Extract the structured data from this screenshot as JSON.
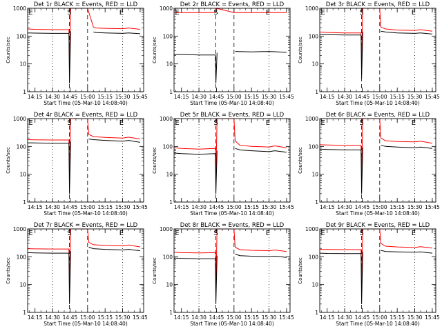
{
  "window": {
    "background": "#ffffff"
  },
  "colors": {
    "events": "#000000",
    "lld": "#ff0000",
    "axes": "#000000"
  },
  "chart_data": [
    {
      "type": "line",
      "title": "Det 1r BLACK = Events, RED = LLD",
      "xlabel": "Start Time (05-Mar-10 14:08:40)",
      "ylabel": "Counts/sec",
      "y_scale": "log",
      "ylim": [
        1,
        1000
      ],
      "yticks": [
        "1",
        "10",
        "100",
        "1000"
      ],
      "xticks": [
        "14:15",
        "14:30",
        "14:45",
        "15:00",
        "15:15",
        "15:30",
        "15:45"
      ],
      "markers": [
        "E",
        "S",
        "E"
      ],
      "series": [
        {
          "color": "#000000",
          "x": [
            "14:08:40",
            "14:15",
            "14:30",
            "14:44",
            "14:44:30",
            "14:45:30",
            "14:45:30",
            "15:00",
            "15:05",
            "15:07",
            "15:15",
            "15:30",
            "15:35",
            "15:45"
          ],
          "y": [
            130,
            128,
            125,
            125,
            2,
            150,
            null,
            null,
            140,
            135,
            130,
            125,
            130,
            122
          ]
        },
        {
          "color": "#ff0000",
          "x": [
            "14:08:40",
            "14:15",
            "14:30",
            "14:44",
            "14:44:30",
            "14:45:30",
            "14:48",
            "15:00",
            "15:05",
            "15:07",
            "15:15",
            "15:30",
            "15:35",
            "15:45"
          ],
          "y": [
            180,
            175,
            170,
            170,
            8,
            1000,
            1000,
            1000,
            210,
            195,
            190,
            185,
            195,
            175
          ]
        }
      ]
    },
    {
      "type": "line",
      "title": "Det 2r BLACK = Events, RED = LLD",
      "xlabel": "Start Time (05-Mar-10 14:08:40)",
      "ylabel": "Counts/sec",
      "y_scale": "log",
      "ylim": [
        1,
        1000
      ],
      "yticks": [
        "1",
        "10",
        "100",
        "1000"
      ],
      "xticks": [
        "14:15",
        "14:30",
        "14:45",
        "15:00",
        "15:15",
        "15:30",
        "15:45"
      ],
      "markers": [
        "E",
        "S",
        "E"
      ],
      "series": [
        {
          "color": "#000000",
          "x": [
            "14:08:40",
            "14:15",
            "14:30",
            "14:44",
            "14:44:30",
            "14:45:30",
            "14:45:30",
            "15:00",
            "15:01",
            "15:15",
            "15:30",
            "15:45"
          ],
          "y": [
            22,
            22,
            21,
            21,
            2,
            25,
            null,
            null,
            28,
            27,
            28,
            26
          ]
        },
        {
          "color": "#ff0000",
          "x": [
            "14:08:40",
            "14:15",
            "14:30",
            "14:44",
            "14:45",
            "15:00",
            "15:15",
            "15:30",
            "15:45"
          ],
          "y": [
            700,
            700,
            700,
            700,
            1000,
            700,
            700,
            700,
            700
          ]
        }
      ]
    },
    {
      "type": "line",
      "title": "Det 3r BLACK = Events, RED = LLD",
      "xlabel": "Start Time (05-Mar-10 14:08:40)",
      "ylabel": "Counts/sec",
      "y_scale": "log",
      "ylim": [
        1,
        1000
      ],
      "yticks": [
        "1",
        "10",
        "100",
        "1000"
      ],
      "xticks": [
        "14:15",
        "14:30",
        "14:45",
        "15:00",
        "15:15",
        "15:30",
        "15:45"
      ],
      "markers": [
        "E",
        "S",
        "E"
      ],
      "series": [
        {
          "color": "#000000",
          "x": [
            "14:08:40",
            "14:15",
            "14:30",
            "14:44",
            "14:44:30",
            "14:45:30",
            "14:45:30",
            "15:00",
            "15:01",
            "15:05",
            "15:15",
            "15:30",
            "15:35",
            "15:45"
          ],
          "y": [
            115,
            112,
            110,
            110,
            3,
            140,
            null,
            null,
            150,
            140,
            130,
            125,
            130,
            118
          ]
        },
        {
          "color": "#ff0000",
          "x": [
            "14:08:40",
            "14:15",
            "14:30",
            "14:44",
            "14:44:30",
            "14:45:30",
            "14:48",
            "15:00",
            "15:01",
            "15:05",
            "15:15",
            "15:30",
            "15:35",
            "15:45"
          ],
          "y": [
            140,
            135,
            130,
            130,
            10,
            1000,
            1000,
            1000,
            210,
            180,
            165,
            160,
            170,
            150
          ]
        }
      ]
    },
    {
      "type": "line",
      "title": "Det 4r BLACK = Events, RED = LLD",
      "xlabel": "Start Time (05-Mar-10 14:08:40)",
      "ylabel": "Counts/sec",
      "y_scale": "log",
      "ylim": [
        1,
        1000
      ],
      "yticks": [
        "1",
        "10",
        "100",
        "1000"
      ],
      "xticks": [
        "14:15",
        "14:30",
        "14:45",
        "15:00",
        "15:15",
        "15:30",
        "15:45"
      ],
      "markers": [
        "E",
        "S",
        "E"
      ],
      "series": [
        {
          "color": "#000000",
          "x": [
            "14:08:40",
            "14:15",
            "14:30",
            "14:44",
            "14:44:30",
            "14:45:30",
            "14:45:30",
            "15:00",
            "15:01",
            "15:05",
            "15:15",
            "15:30",
            "15:35",
            "15:45"
          ],
          "y": [
            135,
            133,
            130,
            130,
            2,
            150,
            null,
            null,
            185,
            175,
            165,
            155,
            165,
            140
          ]
        },
        {
          "color": "#ff0000",
          "x": [
            "14:08:40",
            "14:15",
            "14:30",
            "14:44",
            "14:44:30",
            "14:45:30",
            "14:48",
            "15:00",
            "15:01",
            "15:05",
            "15:15",
            "15:30",
            "15:35",
            "15:45"
          ],
          "y": [
            175,
            172,
            170,
            170,
            8,
            1000,
            1000,
            1000,
            270,
            225,
            210,
            200,
            215,
            185
          ]
        }
      ]
    },
    {
      "type": "line",
      "title": "Det 5r BLACK = Events, RED = LLD",
      "xlabel": "Start Time (05-Mar-10 14:08:40)",
      "ylabel": "Counts/sec",
      "y_scale": "log",
      "ylim": [
        1,
        1000
      ],
      "yticks": [
        "1",
        "10",
        "100",
        "1000"
      ],
      "xticks": [
        "14:15",
        "14:30",
        "14:45",
        "15:00",
        "15:15",
        "15:30",
        "15:45"
      ],
      "markers": [
        "E",
        "S",
        "E"
      ],
      "series": [
        {
          "color": "#000000",
          "x": [
            "14:08:40",
            "14:15",
            "14:30",
            "14:44",
            "14:44:30",
            "14:45:30",
            "14:45:30",
            "15:00",
            "15:01",
            "15:05",
            "15:15",
            "15:30",
            "15:35",
            "15:45"
          ],
          "y": [
            58,
            55,
            52,
            55,
            2,
            70,
            null,
            null,
            85,
            75,
            70,
            65,
            70,
            62
          ]
        },
        {
          "color": "#ff0000",
          "x": [
            "14:08:40",
            "14:15",
            "14:30",
            "14:44",
            "14:44:30",
            "14:45:30",
            "14:48",
            "15:00",
            "15:01",
            "15:05",
            "15:15",
            "15:30",
            "15:35",
            "15:45"
          ],
          "y": [
            90,
            85,
            80,
            85,
            8,
            1000,
            1000,
            1000,
            160,
            110,
            100,
            95,
            105,
            90
          ]
        }
      ]
    },
    {
      "type": "line",
      "title": "Det 6r BLACK = Events, RED = LLD",
      "xlabel": "Start Time (05-Mar-10 14:08:40)",
      "ylabel": "Counts/sec",
      "y_scale": "log",
      "ylim": [
        1,
        1000
      ],
      "yticks": [
        "1",
        "10",
        "100",
        "1000"
      ],
      "xticks": [
        "14:15",
        "14:30",
        "14:45",
        "15:00",
        "15:15",
        "15:30",
        "15:45"
      ],
      "markers": [
        "E",
        "S",
        "E"
      ],
      "series": [
        {
          "color": "#000000",
          "x": [
            "14:08:40",
            "14:15",
            "14:30",
            "14:44",
            "14:44:30",
            "14:45:30",
            "14:45:30",
            "15:00",
            "15:01",
            "15:05",
            "15:15",
            "15:30",
            "15:35",
            "15:45"
          ],
          "y": [
            80,
            78,
            75,
            75,
            2,
            90,
            null,
            null,
            110,
            100,
            95,
            90,
            95,
            85
          ]
        },
        {
          "color": "#ff0000",
          "x": [
            "14:08:40",
            "14:15",
            "14:30",
            "14:44",
            "14:44:30",
            "14:45:30",
            "14:48",
            "15:00",
            "15:01",
            "15:05",
            "15:15",
            "15:30",
            "15:35",
            "15:45"
          ],
          "y": [
            115,
            112,
            110,
            110,
            8,
            1000,
            1000,
            1000,
            200,
            160,
            150,
            145,
            155,
            130
          ]
        }
      ]
    },
    {
      "type": "line",
      "title": "Det 7r BLACK = Events, RED = LLD",
      "xlabel": "Start Time (05-Mar-10 14:08:40)",
      "ylabel": "Counts/sec",
      "y_scale": "log",
      "ylim": [
        1,
        1000
      ],
      "yticks": [
        "1",
        "10",
        "100",
        "1000"
      ],
      "xticks": [
        "14:15",
        "14:30",
        "14:45",
        "15:00",
        "15:15",
        "15:30",
        "15:45"
      ],
      "markers": [
        "E",
        "S",
        "E"
      ],
      "series": [
        {
          "color": "#000000",
          "x": [
            "14:08:40",
            "14:15",
            "14:30",
            "14:44",
            "14:44:30",
            "14:45:30",
            "14:45:30",
            "15:00",
            "15:01",
            "15:05",
            "15:15",
            "15:30",
            "15:35",
            "15:45"
          ],
          "y": [
            140,
            138,
            135,
            135,
            2,
            160,
            null,
            null,
            220,
            195,
            185,
            175,
            185,
            165
          ]
        },
        {
          "color": "#ff0000",
          "x": [
            "14:08:40",
            "14:15",
            "14:30",
            "14:44",
            "14:44:30",
            "14:45:30",
            "14:48",
            "15:00",
            "15:01",
            "15:05",
            "15:15",
            "15:30",
            "15:35",
            "15:45"
          ],
          "y": [
            195,
            192,
            190,
            190,
            8,
            1000,
            1000,
            1000,
            330,
            270,
            255,
            245,
            265,
            225
          ]
        }
      ]
    },
    {
      "type": "line",
      "title": "Det 8r BLACK = Events, RED = LLD",
      "xlabel": "Start Time (05-Mar-10 14:08:40)",
      "ylabel": "Counts/sec",
      "y_scale": "log",
      "ylim": [
        1,
        1000
      ],
      "yticks": [
        "1",
        "10",
        "100",
        "1000"
      ],
      "xticks": [
        "14:15",
        "14:30",
        "14:45",
        "15:00",
        "15:15",
        "15:30",
        "15:45"
      ],
      "markers": [
        "E",
        "S",
        "E"
      ],
      "series": [
        {
          "color": "#000000",
          "x": [
            "14:08:40",
            "14:15",
            "14:30",
            "14:44",
            "14:44:30",
            "14:45:30",
            "14:45:30",
            "15:00",
            "15:01",
            "15:05",
            "15:15",
            "15:30",
            "15:35",
            "15:45"
          ],
          "y": [
            90,
            88,
            85,
            85,
            2,
            110,
            null,
            null,
            125,
            110,
            105,
            100,
            105,
            95
          ]
        },
        {
          "color": "#ff0000",
          "x": [
            "14:08:40",
            "14:15",
            "14:30",
            "14:44",
            "14:44:30",
            "14:45:30",
            "14:48",
            "15:00",
            "15:01",
            "15:05",
            "15:15",
            "15:30",
            "15:35",
            "15:45"
          ],
          "y": [
            145,
            140,
            138,
            140,
            8,
            1000,
            1000,
            1000,
            220,
            180,
            170,
            165,
            175,
            155
          ]
        }
      ]
    },
    {
      "type": "line",
      "title": "Det 9r BLACK = Events, RED = LLD",
      "xlabel": "Start Time (05-Mar-10 14:08:40)",
      "ylabel": "Counts/sec",
      "y_scale": "log",
      "ylim": [
        1,
        1000
      ],
      "yticks": [
        "1",
        "10",
        "100",
        "1000"
      ],
      "xticks": [
        "14:15",
        "14:30",
        "14:45",
        "15:00",
        "15:15",
        "15:30",
        "15:45"
      ],
      "markers": [
        "E",
        "S",
        "E"
      ],
      "series": [
        {
          "color": "#000000",
          "x": [
            "14:08:40",
            "14:15",
            "14:30",
            "14:44",
            "14:44:30",
            "14:45:30",
            "14:45:30",
            "15:00",
            "15:01",
            "15:05",
            "15:15",
            "15:30",
            "15:35",
            "15:45"
          ],
          "y": [
            135,
            132,
            130,
            130,
            2,
            150,
            null,
            null,
            170,
            155,
            150,
            145,
            150,
            135
          ]
        },
        {
          "color": "#ff0000",
          "x": [
            "14:08:40",
            "14:15",
            "14:30",
            "14:44",
            "14:44:30",
            "14:45:30",
            "14:48",
            "15:00",
            "15:01",
            "15:05",
            "15:15",
            "15:30",
            "15:35",
            "15:45"
          ],
          "y": [
            185,
            182,
            180,
            180,
            8,
            1000,
            1000,
            1000,
            300,
            240,
            225,
            215,
            230,
            205
          ]
        }
      ]
    }
  ]
}
